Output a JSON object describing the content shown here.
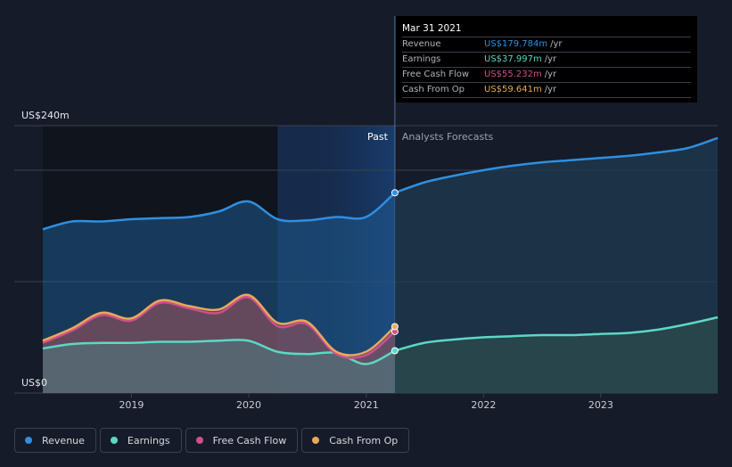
{
  "chart_data": {
    "type": "area",
    "y_max_label": "US$240m",
    "y_min_label": "US$0",
    "ylim": [
      0,
      240
    ],
    "x_range": [
      "2018-03-31",
      "2023-12-31"
    ],
    "x_ticks": [
      "2019",
      "2020",
      "2021",
      "2022",
      "2023"
    ],
    "past_label": "Past",
    "forecast_label": "Analysts Forecasts",
    "divider_date": "2021-03-31",
    "series": [
      {
        "name": "Revenue",
        "color": "#2f8fe0",
        "past": [
          [
            "2018-03-31",
            147
          ],
          [
            "2018-06-30",
            154
          ],
          [
            "2018-09-30",
            154
          ],
          [
            "2018-12-31",
            156
          ],
          [
            "2019-03-31",
            157
          ],
          [
            "2019-06-30",
            158
          ],
          [
            "2019-09-30",
            163
          ],
          [
            "2019-12-31",
            172
          ],
          [
            "2020-03-31",
            156
          ],
          [
            "2020-06-30",
            155
          ],
          [
            "2020-09-30",
            158
          ],
          [
            "2020-12-31",
            158
          ],
          [
            "2021-03-31",
            179.784
          ]
        ],
        "forecast": [
          [
            "2021-03-31",
            179.784
          ],
          [
            "2021-06-30",
            189
          ],
          [
            "2021-09-30",
            195
          ],
          [
            "2021-12-31",
            200
          ],
          [
            "2022-03-31",
            204
          ],
          [
            "2022-06-30",
            207
          ],
          [
            "2022-09-30",
            209
          ],
          [
            "2022-12-31",
            211
          ],
          [
            "2023-03-31",
            213
          ],
          [
            "2023-06-30",
            216
          ],
          [
            "2023-09-30",
            220
          ],
          [
            "2023-12-31",
            229
          ]
        ]
      },
      {
        "name": "Earnings",
        "color": "#5cd8c4",
        "past": [
          [
            "2018-03-31",
            40
          ],
          [
            "2018-06-30",
            44
          ],
          [
            "2018-09-30",
            45
          ],
          [
            "2018-12-31",
            45
          ],
          [
            "2019-03-31",
            46
          ],
          [
            "2019-06-30",
            46
          ],
          [
            "2019-09-30",
            47
          ],
          [
            "2019-12-31",
            47
          ],
          [
            "2020-03-31",
            37
          ],
          [
            "2020-06-30",
            35
          ],
          [
            "2020-09-30",
            36
          ],
          [
            "2020-12-31",
            26
          ],
          [
            "2021-03-31",
            37.997
          ]
        ],
        "forecast": [
          [
            "2021-03-31",
            37.997
          ],
          [
            "2021-06-30",
            45
          ],
          [
            "2021-09-30",
            48
          ],
          [
            "2021-12-31",
            50
          ],
          [
            "2022-03-31",
            51
          ],
          [
            "2022-06-30",
            52
          ],
          [
            "2022-09-30",
            52
          ],
          [
            "2022-12-31",
            53
          ],
          [
            "2023-03-31",
            54
          ],
          [
            "2023-06-30",
            57
          ],
          [
            "2023-09-30",
            62
          ],
          [
            "2023-12-31",
            68
          ]
        ]
      },
      {
        "name": "Free Cash Flow",
        "color": "#d14f8a",
        "past": [
          [
            "2018-03-31",
            45
          ],
          [
            "2018-06-30",
            56
          ],
          [
            "2018-09-30",
            70
          ],
          [
            "2018-12-31",
            65
          ],
          [
            "2019-03-31",
            81
          ],
          [
            "2019-06-30",
            76
          ],
          [
            "2019-09-30",
            72
          ],
          [
            "2019-12-31",
            86
          ],
          [
            "2020-03-31",
            60
          ],
          [
            "2020-06-30",
            62
          ],
          [
            "2020-09-30",
            35
          ],
          [
            "2020-12-31",
            34
          ],
          [
            "2021-03-31",
            55.232
          ]
        ],
        "forecast": []
      },
      {
        "name": "Cash From Op",
        "color": "#e8a95a",
        "past": [
          [
            "2018-03-31",
            47
          ],
          [
            "2018-06-30",
            58
          ],
          [
            "2018-09-30",
            72
          ],
          [
            "2018-12-31",
            67
          ],
          [
            "2019-03-31",
            83
          ],
          [
            "2019-06-30",
            78
          ],
          [
            "2019-09-30",
            75
          ],
          [
            "2019-12-31",
            88
          ],
          [
            "2020-03-31",
            63
          ],
          [
            "2020-06-30",
            64
          ],
          [
            "2020-09-30",
            37
          ],
          [
            "2020-12-31",
            37
          ],
          [
            "2021-03-31",
            59.641
          ]
        ],
        "forecast": []
      }
    ]
  },
  "tooltip": {
    "date": "Mar 31 2021",
    "unit": "/yr",
    "rows": [
      {
        "label": "Revenue",
        "value": "US$179.784m",
        "color": "#2f8fe0"
      },
      {
        "label": "Earnings",
        "value": "US$37.997m",
        "color": "#5cd8c4"
      },
      {
        "label": "Free Cash Flow",
        "value": "US$55.232m",
        "color": "#d14f8a"
      },
      {
        "label": "Cash From Op",
        "value": "US$59.641m",
        "color": "#e8a95a"
      }
    ]
  },
  "legend": [
    {
      "label": "Revenue",
      "color": "#2f8fe0"
    },
    {
      "label": "Earnings",
      "color": "#5cd8c4"
    },
    {
      "label": "Free Cash Flow",
      "color": "#d14f8a"
    },
    {
      "label": "Cash From Op",
      "color": "#e8a95a"
    }
  ]
}
